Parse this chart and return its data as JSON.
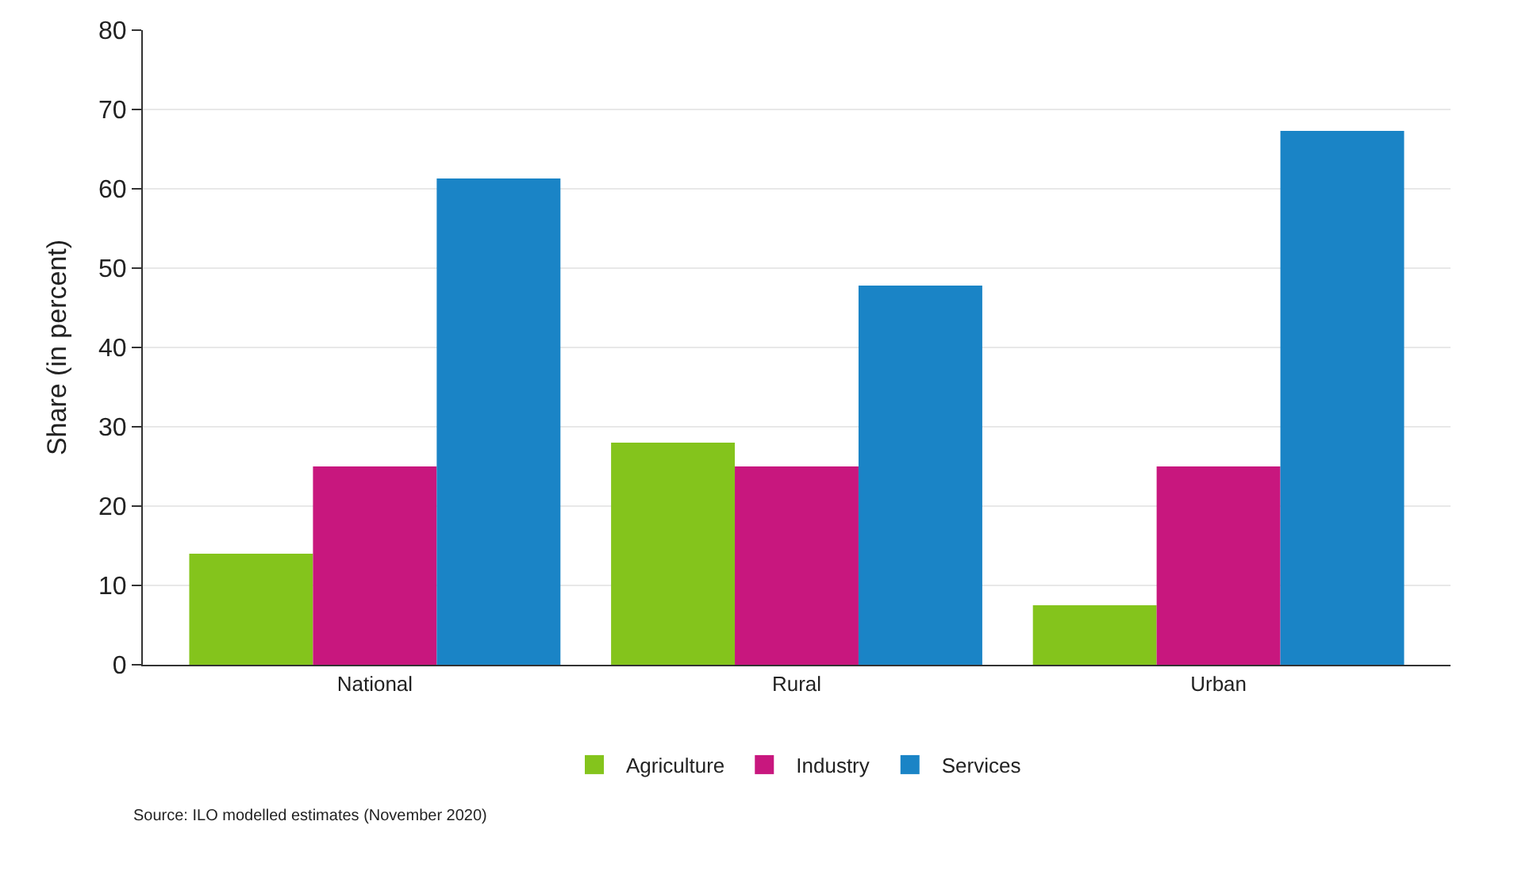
{
  "chart_data": {
    "type": "bar",
    "ylabel": "Share (in percent)",
    "categories": [
      "National",
      "Rural",
      "Urban"
    ],
    "series": [
      {
        "name": "Agriculture",
        "color": "#84c41c",
        "values": [
          14,
          28,
          7.5
        ]
      },
      {
        "name": "Industry",
        "color": "#c8177e",
        "values": [
          25,
          25,
          25
        ]
      },
      {
        "name": "Services",
        "color": "#1a84c6",
        "values": [
          61.3,
          47.8,
          67.3
        ]
      }
    ],
    "ylim": [
      0,
      80
    ],
    "yticks": [
      0,
      10,
      20,
      30,
      40,
      50,
      60,
      70,
      80
    ],
    "grid": "y",
    "legend": "bottom",
    "annotations": [
      "Source: ILO modelled estimates (November 2020)"
    ]
  }
}
